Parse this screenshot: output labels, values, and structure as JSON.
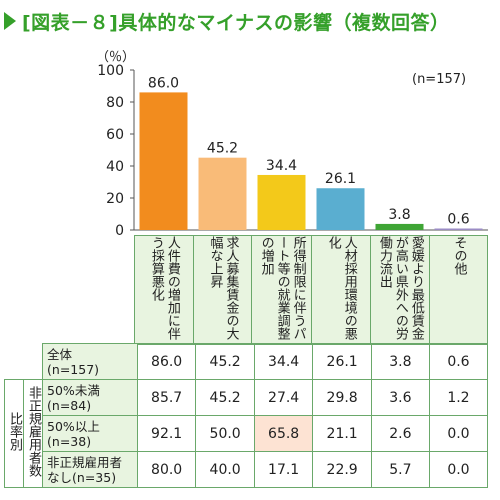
{
  "title": "[図表－８]具体的なマイナスの影響（複数回答）",
  "unit": "（％）",
  "n_label": "(n=157)",
  "colors": {
    "title": "#35a02a",
    "bars": [
      "#f28c1e",
      "#f9bb78",
      "#f3c91a",
      "#5aaed0",
      "#3fa535",
      "#9b8cc5"
    ]
  },
  "chart_data": {
    "type": "bar",
    "categories": [
      "人件費の増加に伴う採算悪化",
      "求人募集賃金の大幅な上昇",
      "所得制限に伴うパート等の就業調整の増加",
      "人材採用環境の悪化",
      "愛媛より最低賃金が高い県外への労働力流出",
      "その他"
    ],
    "values": [
      86.0,
      45.2,
      34.4,
      26.1,
      3.8,
      0.6
    ],
    "value_labels": [
      "86.0",
      "45.2",
      "34.4",
      "26.1",
      "3.8",
      "0.6"
    ],
    "ylim": [
      0,
      100
    ],
    "yticks": [
      "0",
      "20",
      "40",
      "60",
      "80",
      "100"
    ]
  },
  "table": {
    "side_outer": "比率別",
    "side_inner": "非正規雇用者数",
    "rows": [
      {
        "label": "全体\n(n=157)",
        "values": [
          "86.0",
          "45.2",
          "34.4",
          "26.1",
          "3.8",
          "0.6"
        ]
      },
      {
        "label": "50%未満\n(n=84)",
        "values": [
          "85.7",
          "45.2",
          "27.4",
          "29.8",
          "3.6",
          "1.2"
        ]
      },
      {
        "label": "50%以上\n(n=38)",
        "values": [
          "92.1",
          "50.0",
          "65.8",
          "21.1",
          "2.6",
          "0.0"
        ]
      },
      {
        "label": "非正規雇用者\nなし(n=35)",
        "values": [
          "80.0",
          "40.0",
          "17.1",
          "22.9",
          "5.7",
          "0.0"
        ]
      }
    ]
  }
}
